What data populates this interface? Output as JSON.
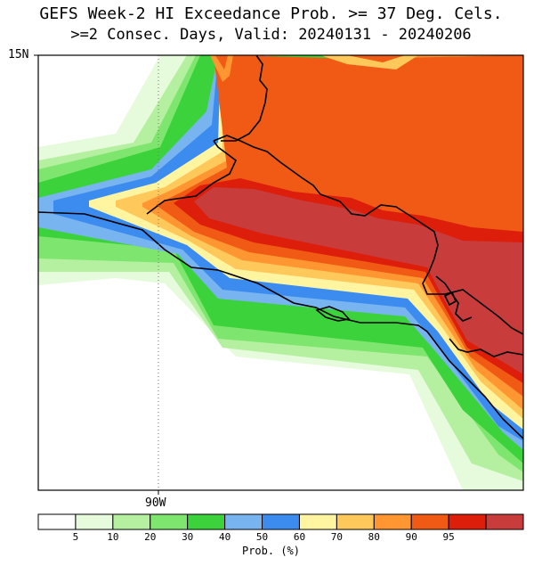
{
  "title_line1": "GEFS Week-2 HI Exceedance Prob. >= 37 Deg. Cels.",
  "title_line2": ">=2 Consec. Days, Valid: 20240131 - 20240206",
  "lat_label": "15N",
  "lon_label": "90W",
  "legend": {
    "title": "Prob. (%)",
    "ticks": [
      "5",
      "10",
      "20",
      "30",
      "40",
      "50",
      "60",
      "70",
      "80",
      "90",
      "95"
    ],
    "colors": [
      "#ffffff",
      "#e6fadc",
      "#b4f0a0",
      "#7ee66e",
      "#3cd23c",
      "#78b4f0",
      "#3c8cf0",
      "#fff5a0",
      "#ffc85a",
      "#ff9632",
      "#f05a14",
      "#dc1e0a",
      "#c83c3c"
    ]
  },
  "colors": {
    "land_max": "#c83c3c",
    "ocean_hi": "#dc1e0a",
    "border": "#000000"
  }
}
